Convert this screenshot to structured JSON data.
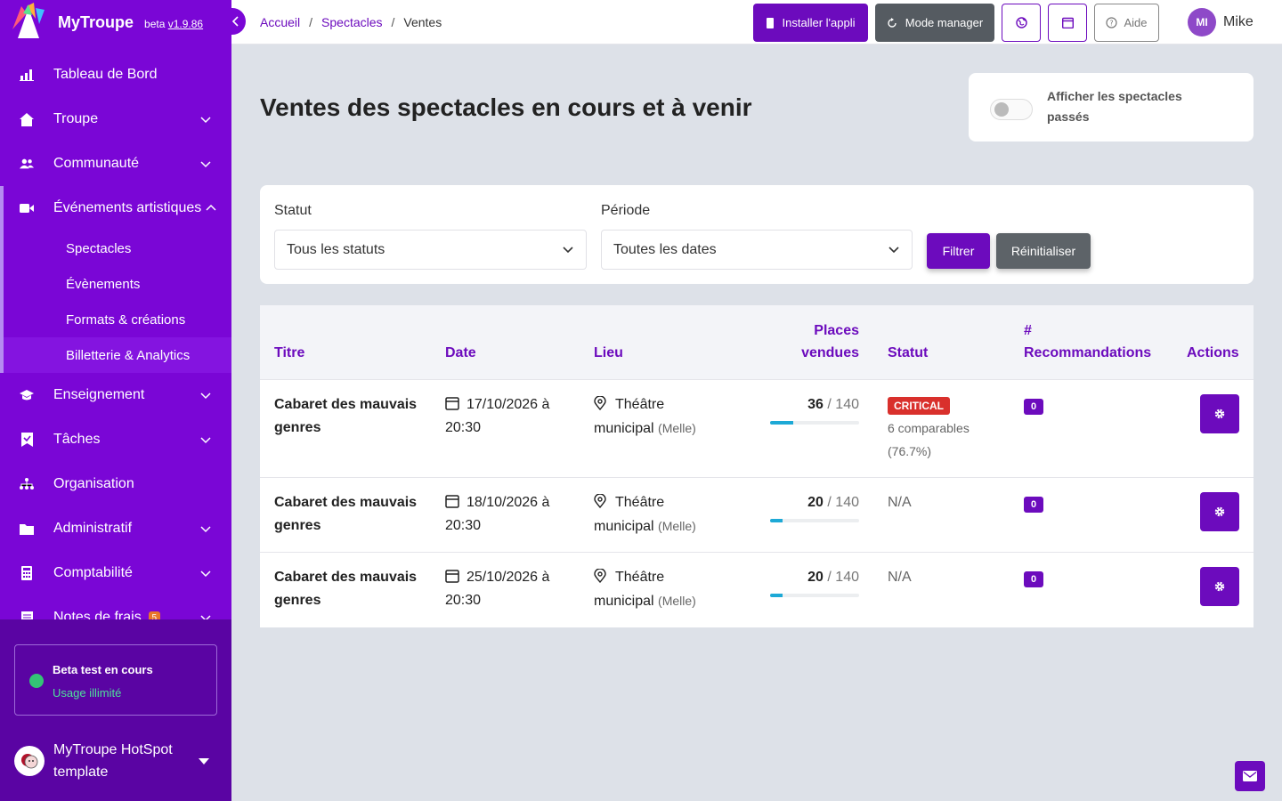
{
  "brand": {
    "name": "MyTroupe",
    "beta_label": "beta",
    "version": "v1.9.86"
  },
  "sidebar": {
    "items": [
      {
        "label": "Tableau de Bord"
      },
      {
        "label": "Troupe"
      },
      {
        "label": "Communauté"
      },
      {
        "label": "Événements artistiques"
      },
      {
        "label": "Enseignement"
      },
      {
        "label": "Tâches"
      },
      {
        "label": "Organisation"
      },
      {
        "label": "Administratif"
      },
      {
        "label": "Comptabilité"
      },
      {
        "label": "Notes de frais",
        "badge": "5"
      }
    ],
    "subitems": [
      {
        "label": "Spectacles"
      },
      {
        "label": "Évènements"
      },
      {
        "label": "Formats & créations"
      },
      {
        "label": "Billetterie & Analytics"
      }
    ],
    "beta": {
      "title": "Beta test en cours",
      "subtitle": "Usage illimité"
    },
    "org": {
      "name": "MyTroupe HotSpot template"
    }
  },
  "topbar": {
    "breadcrumb": [
      "Accueil",
      "Spectacles",
      "Ventes"
    ],
    "install_label": "Installer l'appli",
    "manager_label": "Mode manager",
    "help_label": "Aide",
    "user_initials": "MI",
    "user_name": "Mike"
  },
  "main": {
    "title": "Ventes des spectacles en cours et à venir",
    "toggle_label": "Afficher les spectacles passés",
    "filters": {
      "status_label": "Statut",
      "status_value": "Tous les statuts",
      "period_label": "Période",
      "period_value": "Toutes les dates",
      "filter_button": "Filtrer",
      "reset_button": "Réinitialiser"
    },
    "table": {
      "headers": {
        "title": "Titre",
        "date": "Date",
        "lieu": "Lieu",
        "places_1": "Places",
        "places_2": "vendues",
        "statut": "Statut",
        "reco_1": "#",
        "reco_2": "Recommandations",
        "actions": "Actions"
      },
      "rows": [
        {
          "title": "Cabaret des mauvais genres",
          "date": "17/10/2026 à 20:30",
          "lieu": "Théâtre municipal",
          "ville": "(Melle)",
          "sold": "36",
          "total": "/ 140",
          "fill": 0.257,
          "status": "CRITICAL",
          "comparables": "6 comparables (76.7%)",
          "reco": "0"
        },
        {
          "title": "Cabaret des mauvais genres",
          "date": "18/10/2026 à 20:30",
          "lieu": "Théâtre municipal",
          "ville": "(Melle)",
          "sold": "20",
          "total": "/ 140",
          "fill": 0.143,
          "status_text": "N/A",
          "reco": "0"
        },
        {
          "title": "Cabaret des mauvais genres",
          "date": "25/10/2026 à 20:30",
          "lieu": "Théâtre municipal",
          "ville": "(Melle)",
          "sold": "20",
          "total": "/ 140",
          "fill": 0.143,
          "status_text": "N/A",
          "reco": "0"
        }
      ]
    }
  },
  "colors": {
    "primary": "#7a06d6",
    "accent": "#6c0bbd",
    "progress": "#1da9d6",
    "critical": "#d9302c",
    "success": "#34c476"
  }
}
